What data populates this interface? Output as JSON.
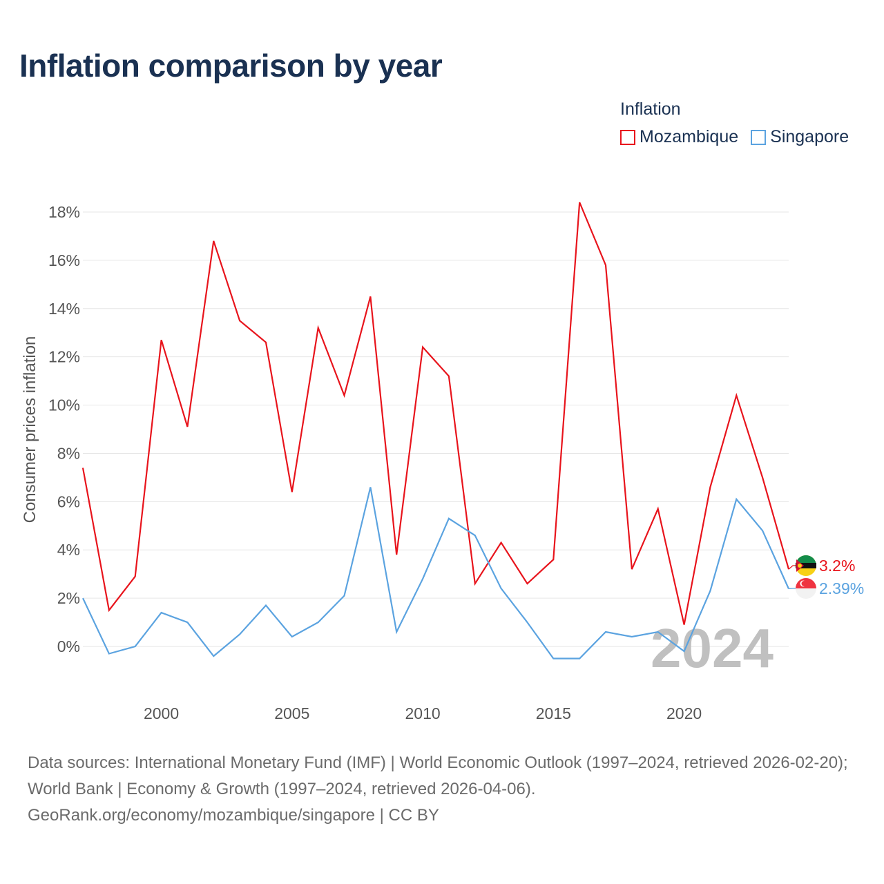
{
  "title": "Inflation comparison by year",
  "legend": {
    "title": "Inflation",
    "items": [
      {
        "name": "Mozambique",
        "color": "#e8141c"
      },
      {
        "name": "Singapore",
        "color": "#5ba3e0"
      }
    ]
  },
  "sources": {
    "line1": "Data sources: International Monetary Fund (IMF) | World Economic Outlook (1997–2024, retrieved 2026-02-20); World Bank | Economy & Growth (1997–2024, retrieved 2026-04-06).",
    "line2": "GeoRank.org/economy/mozambique/singapore | CC BY"
  },
  "chart_data": {
    "type": "line",
    "title": "Inflation comparison by year",
    "xlabel": "",
    "ylabel": "Consumer prices inflation",
    "x": [
      1997,
      1998,
      1999,
      2000,
      2001,
      2002,
      2003,
      2004,
      2005,
      2006,
      2007,
      2008,
      2009,
      2010,
      2011,
      2012,
      2013,
      2014,
      2015,
      2016,
      2017,
      2018,
      2019,
      2020,
      2021,
      2022,
      2023,
      2024
    ],
    "xlim": [
      1997,
      2024
    ],
    "ylim": [
      -2,
      18.5
    ],
    "xticks": [
      "2000",
      "2005",
      "2010",
      "2015",
      "2020"
    ],
    "yticks": [
      "0%",
      "2%",
      "4%",
      "6%",
      "8%",
      "10%",
      "12%",
      "14%",
      "16%",
      "18%"
    ],
    "ytick_values": [
      0,
      2,
      4,
      6,
      8,
      10,
      12,
      14,
      16,
      18
    ],
    "xtick_values": [
      2000,
      2005,
      2010,
      2015,
      2020
    ],
    "watermark_year": "2024",
    "series": [
      {
        "name": "Mozambique",
        "color": "#e8141c",
        "end_label": "3.2%",
        "values": [
          7.4,
          1.5,
          2.9,
          12.7,
          9.1,
          16.8,
          13.5,
          12.6,
          6.4,
          13.2,
          10.4,
          14.5,
          3.8,
          12.4,
          11.2,
          2.6,
          4.3,
          2.6,
          3.6,
          18.4,
          15.8,
          3.2,
          5.7,
          0.9,
          6.6,
          10.4,
          7.0,
          3.2
        ]
      },
      {
        "name": "Singapore",
        "color": "#5ba3e0",
        "end_label": "2.39%",
        "values": [
          2.0,
          -0.3,
          0.0,
          1.4,
          1.0,
          -0.4,
          0.5,
          1.7,
          0.4,
          1.0,
          2.1,
          6.6,
          0.6,
          2.8,
          5.3,
          4.6,
          2.4,
          1.0,
          -0.5,
          -0.5,
          0.6,
          0.4,
          0.6,
          -0.2,
          2.3,
          6.1,
          4.8,
          2.39
        ]
      }
    ]
  }
}
